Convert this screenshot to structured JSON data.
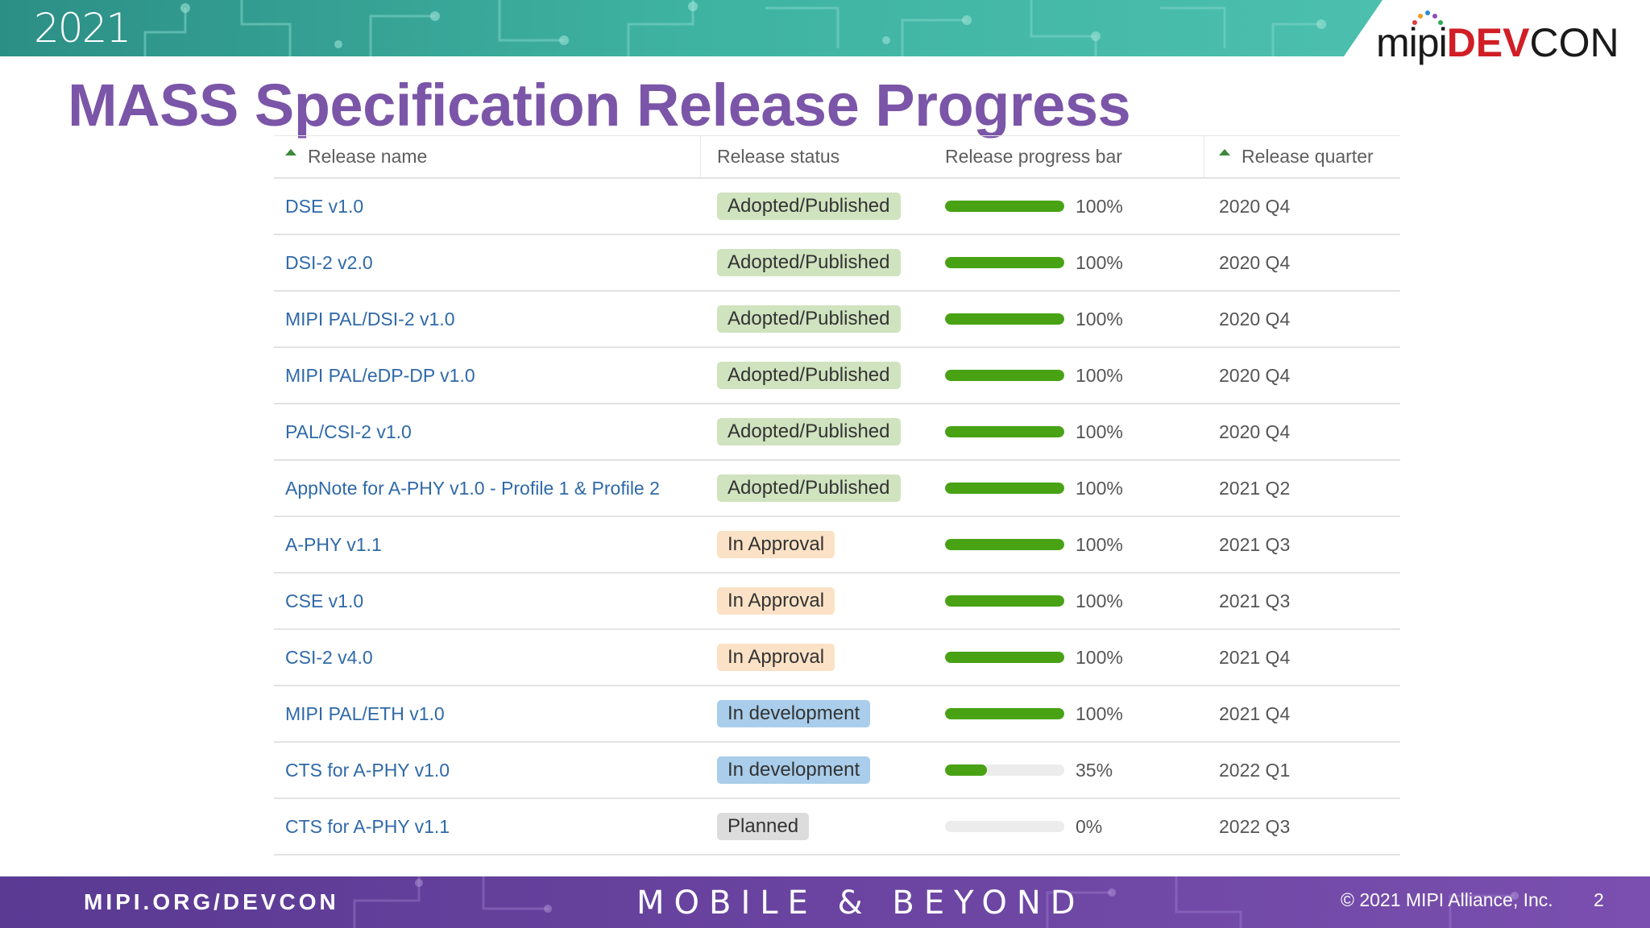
{
  "header": {
    "year": "2021",
    "logo": {
      "mipi": "mipi",
      "dev": "DEV",
      "con": "CON"
    }
  },
  "title": "MASS Specification Release Progress",
  "table": {
    "columns": [
      "Release name",
      "Release status",
      "Release progress bar",
      "Release quarter"
    ],
    "rows": [
      {
        "name": "DSE v1.0",
        "status": "Adopted/Published",
        "status_kind": "adopted",
        "progress": 100,
        "progress_label": "100%",
        "quarter": "2020 Q4"
      },
      {
        "name": "DSI-2 v2.0",
        "status": "Adopted/Published",
        "status_kind": "adopted",
        "progress": 100,
        "progress_label": "100%",
        "quarter": "2020 Q4"
      },
      {
        "name": "MIPI PAL/DSI-2 v1.0",
        "status": "Adopted/Published",
        "status_kind": "adopted",
        "progress": 100,
        "progress_label": "100%",
        "quarter": "2020 Q4"
      },
      {
        "name": "MIPI PAL/eDP-DP v1.0",
        "status": "Adopted/Published",
        "status_kind": "adopted",
        "progress": 100,
        "progress_label": "100%",
        "quarter": "2020 Q4"
      },
      {
        "name": "PAL/CSI-2 v1.0",
        "status": "Adopted/Published",
        "status_kind": "adopted",
        "progress": 100,
        "progress_label": "100%",
        "quarter": "2020 Q4"
      },
      {
        "name": "AppNote for A-PHY v1.0 - Profile 1 & Profile 2",
        "status": "Adopted/Published",
        "status_kind": "adopted",
        "progress": 100,
        "progress_label": "100%",
        "quarter": "2021 Q2"
      },
      {
        "name": "A-PHY v1.1",
        "status": "In Approval",
        "status_kind": "approval",
        "progress": 100,
        "progress_label": "100%",
        "quarter": "2021 Q3"
      },
      {
        "name": "CSE v1.0",
        "status": "In Approval",
        "status_kind": "approval",
        "progress": 100,
        "progress_label": "100%",
        "quarter": "2021 Q3"
      },
      {
        "name": "CSI-2 v4.0",
        "status": "In Approval",
        "status_kind": "approval",
        "progress": 100,
        "progress_label": "100%",
        "quarter": "2021 Q4"
      },
      {
        "name": "MIPI PAL/ETH v1.0",
        "status": "In development",
        "status_kind": "development",
        "progress": 100,
        "progress_label": "100%",
        "quarter": "2021 Q4"
      },
      {
        "name": "CTS for A-PHY v1.0",
        "status": "In development",
        "status_kind": "development",
        "progress": 35,
        "progress_label": "35%",
        "quarter": "2022 Q1"
      },
      {
        "name": "CTS for A-PHY v1.1",
        "status": "Planned",
        "status_kind": "planned",
        "progress": 0,
        "progress_label": "0%",
        "quarter": "2022 Q3"
      }
    ]
  },
  "status_colors": {
    "adopted": "#cfe3bf",
    "approval": "#fbe2c6",
    "development": "#a9cdea",
    "planned": "#dcdcdc"
  },
  "colors": {
    "title": "#7b55a8",
    "link": "#2f69a8",
    "progress_fill": "#48a214",
    "top_banner": "#3aa89a",
    "bottom_banner": "#6a44a0"
  },
  "footer": {
    "url": "MIPI.ORG/DEVCON",
    "tagline": "MOBILE & BEYOND",
    "copyright": "© 2021 MIPI Alliance, Inc.",
    "page_number": "2"
  }
}
